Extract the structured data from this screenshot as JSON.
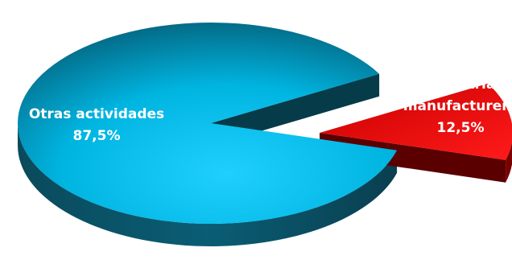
{
  "chart_data": {
    "type": "pie",
    "title": "",
    "slices": [
      {
        "name": "Otras actividades",
        "value": 87.5,
        "value_label": "87,5%",
        "color": "#00b8e6",
        "exploded": false
      },
      {
        "name_lines": [
          "Industria",
          "manufacturera"
        ],
        "name": "Industria manufacturera",
        "value": 12.5,
        "value_label": "12,5%",
        "color": "#e00000",
        "exploded": true
      }
    ],
    "style": "3d-exploded"
  }
}
